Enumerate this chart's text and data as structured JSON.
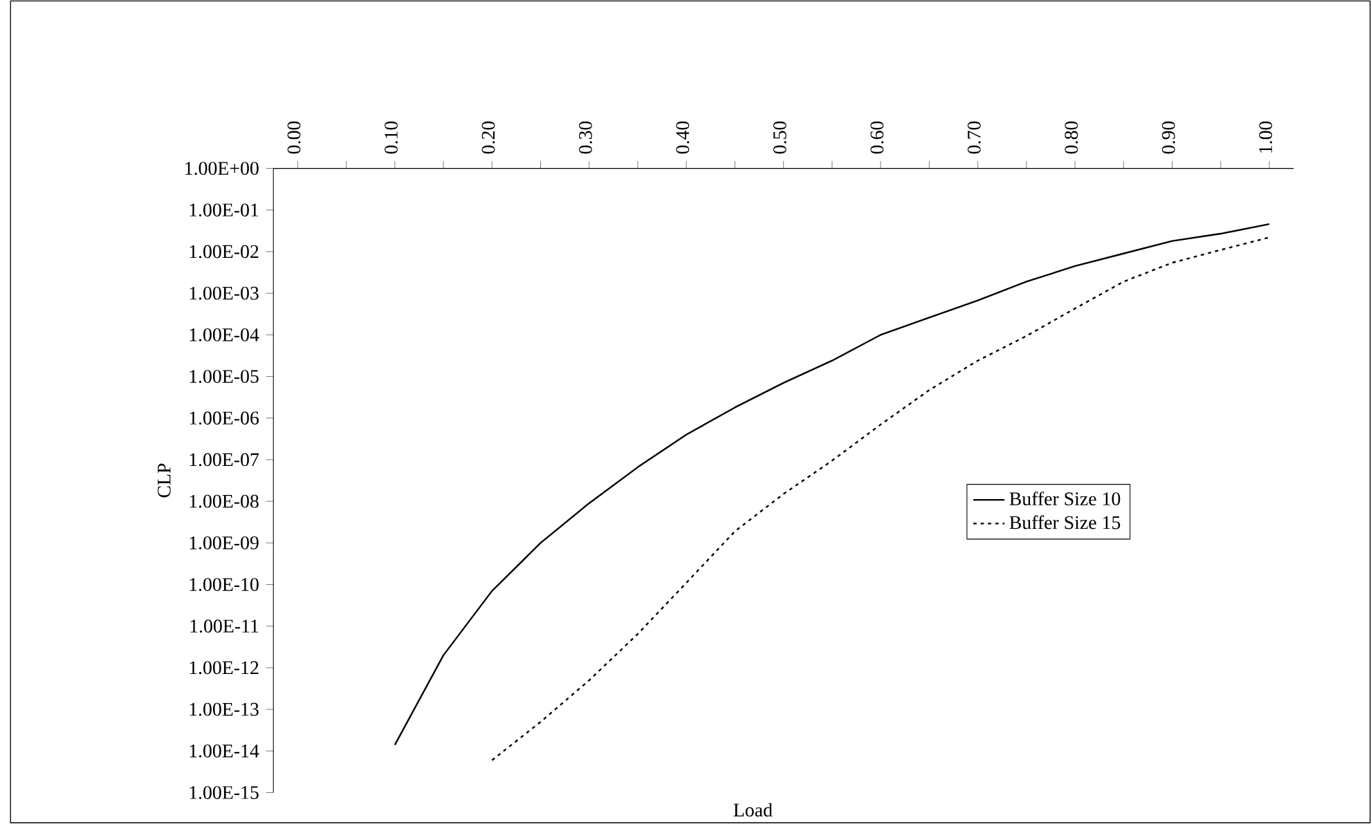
{
  "chart_data": {
    "type": "line",
    "xlabel": "Load",
    "ylabel": "CLP",
    "categories": [
      "0.00",
      null,
      "0.10",
      null,
      "0.20",
      null,
      "0.30",
      null,
      "0.40",
      null,
      "0.50",
      null,
      "0.60",
      null,
      "0.70",
      null,
      "0.80",
      null,
      "0.90",
      null,
      "1.00"
    ],
    "series": [
      {
        "name": "Buffer Size 10",
        "color": "#000000",
        "line_style": "solid",
        "values": [
          null,
          null,
          1.4e-14,
          2e-12,
          7e-11,
          1e-09,
          9e-09,
          6.6e-08,
          4e-07,
          1.8e-06,
          7e-06,
          2.4e-05,
          0.0001,
          0.00026,
          0.00067,
          0.0019,
          0.0045,
          0.009,
          0.018,
          0.027,
          0.046
        ]
      },
      {
        "name": "Buffer Size 15",
        "color": "#000000",
        "line_style": "dotted",
        "values": [
          null,
          null,
          null,
          null,
          6e-15,
          5e-14,
          5e-13,
          6.5e-12,
          1.1e-10,
          1.9e-09,
          1.5e-08,
          9.5e-08,
          7e-07,
          4.7e-06,
          2.4e-05,
          9.4e-05,
          0.00043,
          0.0019,
          0.0054,
          0.011,
          0.022
        ]
      }
    ],
    "log": "y",
    "ylim": [
      1e-15,
      1
    ],
    "yticks": [
      {
        "value": 1,
        "label": "1.00E+00"
      },
      {
        "value": 0.1,
        "label": "1.00E-01"
      },
      {
        "value": 0.01,
        "label": "1.00E-02"
      },
      {
        "value": 0.001,
        "label": "1.00E-03"
      },
      {
        "value": 0.0001,
        "label": "1.00E-04"
      },
      {
        "value": 1e-05,
        "label": "1.00E-05"
      },
      {
        "value": 1e-06,
        "label": "1.00E-06"
      },
      {
        "value": 1e-07,
        "label": "1.00E-07"
      },
      {
        "value": 1e-08,
        "label": "1.00E-08"
      },
      {
        "value": 1e-09,
        "label": "1.00E-09"
      },
      {
        "value": 1e-10,
        "label": "1.00E-10"
      },
      {
        "value": 1e-11,
        "label": "1.00E-11"
      },
      {
        "value": 1e-12,
        "label": "1.00E-12"
      },
      {
        "value": 1e-13,
        "label": "1.00E-13"
      },
      {
        "value": 1e-14,
        "label": "1.00E-14"
      },
      {
        "value": 1e-15,
        "label": "1.00E-15"
      }
    ],
    "legend": "right",
    "grid": false,
    "marker": "none"
  }
}
